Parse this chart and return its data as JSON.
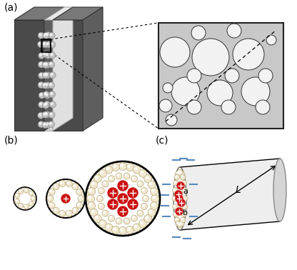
{
  "bg_color": "#ffffff",
  "label_a": "(a)",
  "label_b": "(b)",
  "label_c": "(c)",
  "L_label": "L",
  "a_label": "a",
  "b_label": "b",
  "dark_gray": "#555555",
  "mid_gray": "#888888",
  "light_gray": "#cccccc",
  "bead_color": "#f0e8d0",
  "bead_edge": "#b8a878",
  "red_ion": "#cc1111",
  "blue_dash": "#5588bb",
  "inset_bg": "#c8c8c8"
}
